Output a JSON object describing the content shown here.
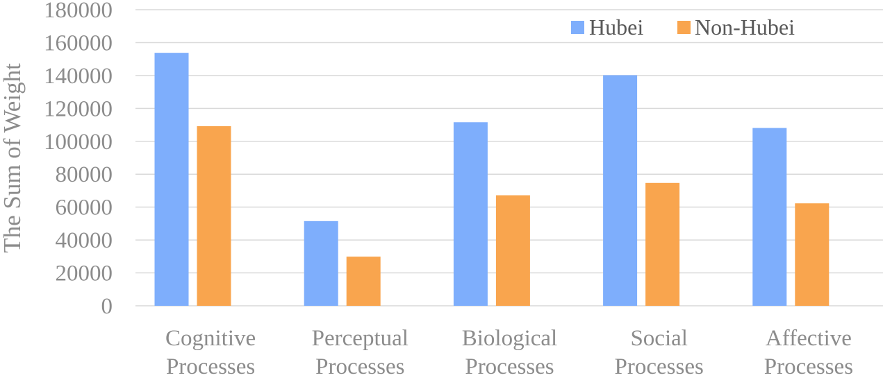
{
  "chart_data": {
    "type": "bar",
    "title": "",
    "xlabel": "",
    "ylabel": "The Sum of Weight",
    "ylim": [
      0,
      180000
    ],
    "yticks": [
      0,
      20000,
      40000,
      60000,
      80000,
      100000,
      120000,
      140000,
      160000,
      180000
    ],
    "grid": true,
    "legend_position": "top-right",
    "categories": [
      [
        "Cognitive",
        "Processes"
      ],
      [
        "Perceptual",
        "Processes"
      ],
      [
        "Biological",
        "Processes"
      ],
      [
        "Social",
        "Processes"
      ],
      [
        "Affective",
        "Processes"
      ]
    ],
    "series": [
      {
        "name": "Hubei",
        "color": "#7eaefc",
        "values": [
          153800,
          51500,
          111600,
          140200,
          108100
        ]
      },
      {
        "name": "Non-Hubei",
        "color": "#f9a54e",
        "values": [
          109200,
          29900,
          67200,
          74700,
          62300
        ]
      }
    ]
  }
}
